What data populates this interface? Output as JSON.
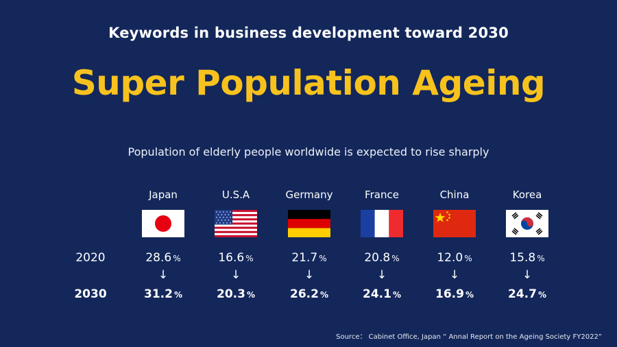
{
  "header": {
    "subtitle": "Keywords in business development toward 2030",
    "title": "Super Population Ageing",
    "lead": "Population of elderly people worldwide is expected to rise sharply"
  },
  "table": {
    "year_2020": "2020",
    "year_2030": "2030",
    "arrow": "↓",
    "unit": "%",
    "countries": [
      {
        "name": "Japan",
        "flag": "japan-flag-icon",
        "v2020": "28.6",
        "v2030": "31.2"
      },
      {
        "name": "U.S.A",
        "flag": "usa-flag-icon",
        "v2020": "16.6",
        "v2030": "20.3"
      },
      {
        "name": "Germany",
        "flag": "germany-flag-icon",
        "v2020": "21.7",
        "v2030": "26.2"
      },
      {
        "name": "France",
        "flag": "france-flag-icon",
        "v2020": "20.8",
        "v2030": "24.1"
      },
      {
        "name": "China",
        "flag": "china-flag-icon",
        "v2020": "12.0",
        "v2030": "16.9"
      },
      {
        "name": "Korea",
        "flag": "korea-flag-icon",
        "v2020": "15.8",
        "v2030": "24.7"
      }
    ]
  },
  "footer": {
    "source": "Source： Cabinet Office, Japan “ Annal Report on the Ageing Society FY2022”"
  },
  "colors": {
    "background": "#13275a",
    "accent": "#f7c21d"
  }
}
